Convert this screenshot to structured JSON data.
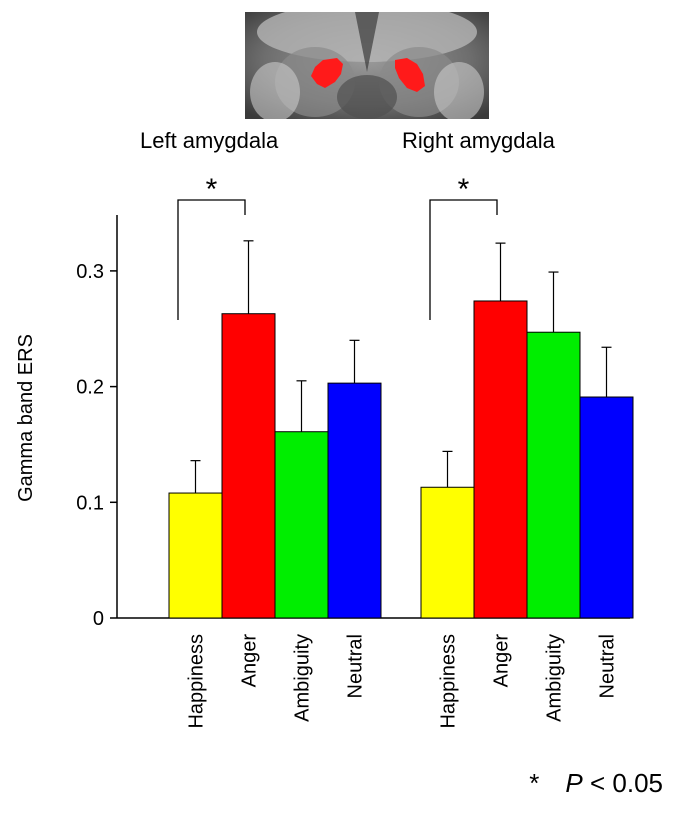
{
  "chart_data": {
    "type": "bar",
    "ylabel": "Gamma band ERS",
    "ylim": [
      0,
      0.35
    ],
    "yticks": [
      "0",
      "0.1",
      "0.2",
      "0.3"
    ],
    "ytick_values": [
      0,
      0.1,
      0.2,
      0.3
    ],
    "categories": [
      "Happiness",
      "Anger",
      "Ambiguity",
      "Neutral"
    ],
    "colors": [
      "#ffff00",
      "#ff0000",
      "#00ee00",
      "#0000ff"
    ],
    "groups": [
      {
        "name": "Left amygdala",
        "values": [
          0.108,
          0.263,
          0.161,
          0.203
        ],
        "errors": [
          0.028,
          0.063,
          0.044,
          0.037
        ],
        "significance": {
          "from": "Happiness",
          "to": "Anger",
          "label": "*"
        }
      },
      {
        "name": "Right amygdala",
        "values": [
          0.113,
          0.274,
          0.247,
          0.191
        ],
        "errors": [
          0.031,
          0.05,
          0.052,
          0.043
        ],
        "significance": {
          "from": "Happiness",
          "to": "Anger",
          "label": "*"
        }
      }
    ]
  },
  "footnote": {
    "star": "*",
    "p": "P",
    "text": " < 0.05"
  }
}
